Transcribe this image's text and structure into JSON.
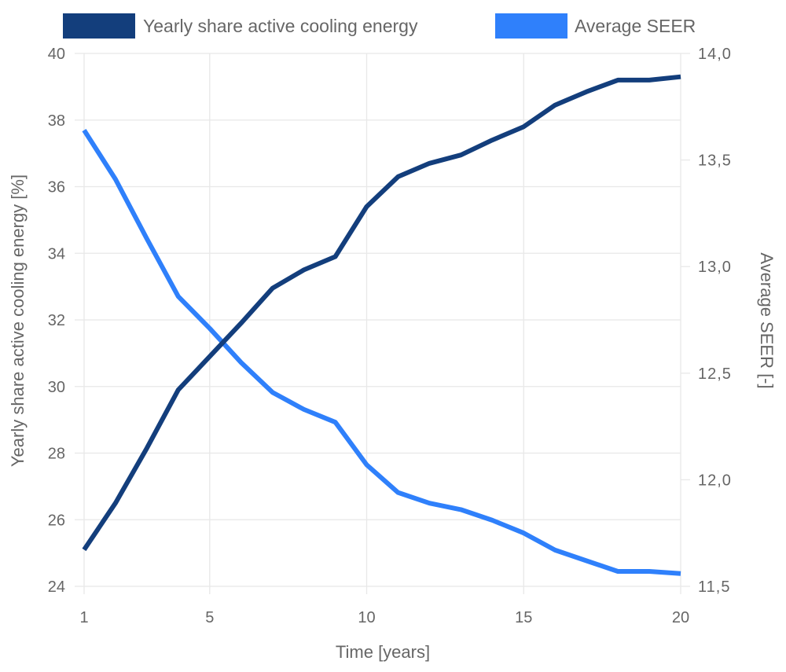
{
  "chart_data": {
    "type": "line",
    "title": "",
    "xlabel": "Time [years]",
    "ylabel_left": "Yearly share active cooling energy [%]",
    "ylabel_right": "Average SEER [-]",
    "x": [
      1,
      2,
      3,
      4,
      5,
      6,
      7,
      8,
      9,
      10,
      11,
      12,
      13,
      14,
      15,
      16,
      17,
      18,
      19,
      20
    ],
    "x_ticks": [
      1,
      5,
      10,
      15,
      20
    ],
    "x_tick_labels": [
      "1",
      "5",
      "10",
      "15",
      "20"
    ],
    "xlim": [
      1,
      20
    ],
    "ylim_left": [
      24,
      40
    ],
    "y_left_ticks": [
      24,
      26,
      28,
      30,
      32,
      34,
      36,
      38,
      40
    ],
    "y_left_tick_labels": [
      "24",
      "26",
      "28",
      "30",
      "32",
      "34",
      "36",
      "38",
      "40"
    ],
    "ylim_right": [
      11.5,
      14.0
    ],
    "y_right_ticks": [
      11.5,
      12.0,
      12.5,
      13.0,
      13.5,
      14.0
    ],
    "y_right_tick_labels": [
      "11,5",
      "12,0",
      "12,5",
      "13,0",
      "13,5",
      "14,0"
    ],
    "grid": true,
    "legend_position": "top-center",
    "series": [
      {
        "name": "Yearly share active cooling energy",
        "axis": "left",
        "color": "#133e7c",
        "values": [
          25.1,
          26.5,
          28.15,
          29.9,
          30.9,
          31.9,
          32.95,
          33.5,
          33.9,
          35.4,
          36.3,
          36.7,
          36.95,
          37.4,
          37.8,
          38.45,
          38.85,
          39.2,
          39.2,
          39.3
        ]
      },
      {
        "name": "Average SEER",
        "axis": "right",
        "color": "#2f80fb",
        "values": [
          13.64,
          13.41,
          13.13,
          12.86,
          12.71,
          12.55,
          12.41,
          12.33,
          12.27,
          12.07,
          11.94,
          11.89,
          11.86,
          11.81,
          11.75,
          11.67,
          11.62,
          11.57,
          11.57,
          11.56
        ]
      }
    ]
  }
}
